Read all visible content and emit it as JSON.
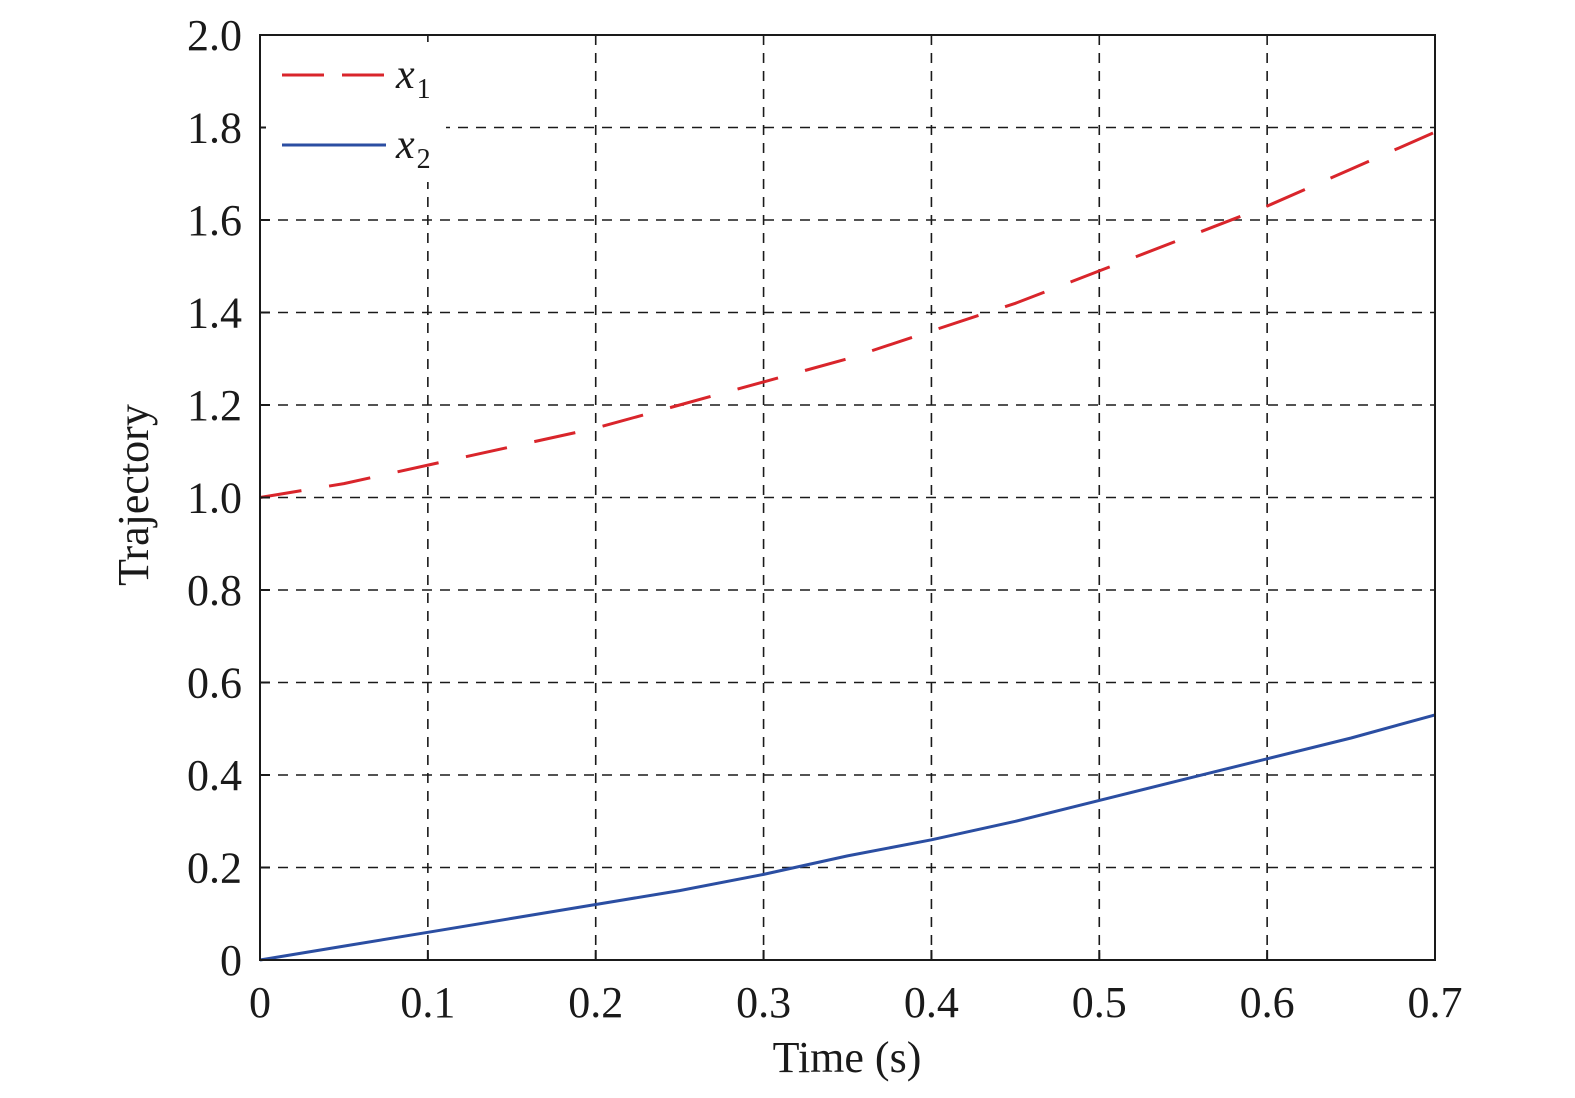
{
  "chart_data": {
    "type": "line",
    "title": "",
    "xlabel": "Time (s)",
    "ylabel": "Trajectory",
    "xlim": [
      0,
      0.7
    ],
    "ylim": [
      0,
      2.0
    ],
    "x_ticks": [
      "0",
      "0.1",
      "0.2",
      "0.3",
      "0.4",
      "0.5",
      "0.6",
      "0.7"
    ],
    "y_ticks": [
      "0",
      "0.2",
      "0.4",
      "0.6",
      "0.8",
      "1.0",
      "1.2",
      "1.4",
      "1.6",
      "1.8",
      "2.0"
    ],
    "grid": true,
    "legend_position": "top-left",
    "series": [
      {
        "name": "x1",
        "label_base": "x",
        "label_sub": "1",
        "color": "#d9252b",
        "style": "dashed",
        "x": [
          0,
          0.05,
          0.1,
          0.15,
          0.2,
          0.25,
          0.3,
          0.35,
          0.4,
          0.45,
          0.5,
          0.55,
          0.6,
          0.65,
          0.7
        ],
        "y": [
          1.0,
          1.03,
          1.07,
          1.11,
          1.15,
          1.2,
          1.25,
          1.3,
          1.36,
          1.42,
          1.49,
          1.56,
          1.63,
          1.71,
          1.79
        ]
      },
      {
        "name": "x2",
        "label_base": "x",
        "label_sub": "2",
        "color": "#2b4ea2",
        "style": "solid",
        "x": [
          0,
          0.05,
          0.1,
          0.15,
          0.2,
          0.25,
          0.3,
          0.35,
          0.4,
          0.45,
          0.5,
          0.55,
          0.6,
          0.65,
          0.7
        ],
        "y": [
          0.0,
          0.03,
          0.06,
          0.09,
          0.12,
          0.15,
          0.185,
          0.225,
          0.26,
          0.3,
          0.345,
          0.39,
          0.435,
          0.48,
          0.53
        ]
      }
    ]
  }
}
